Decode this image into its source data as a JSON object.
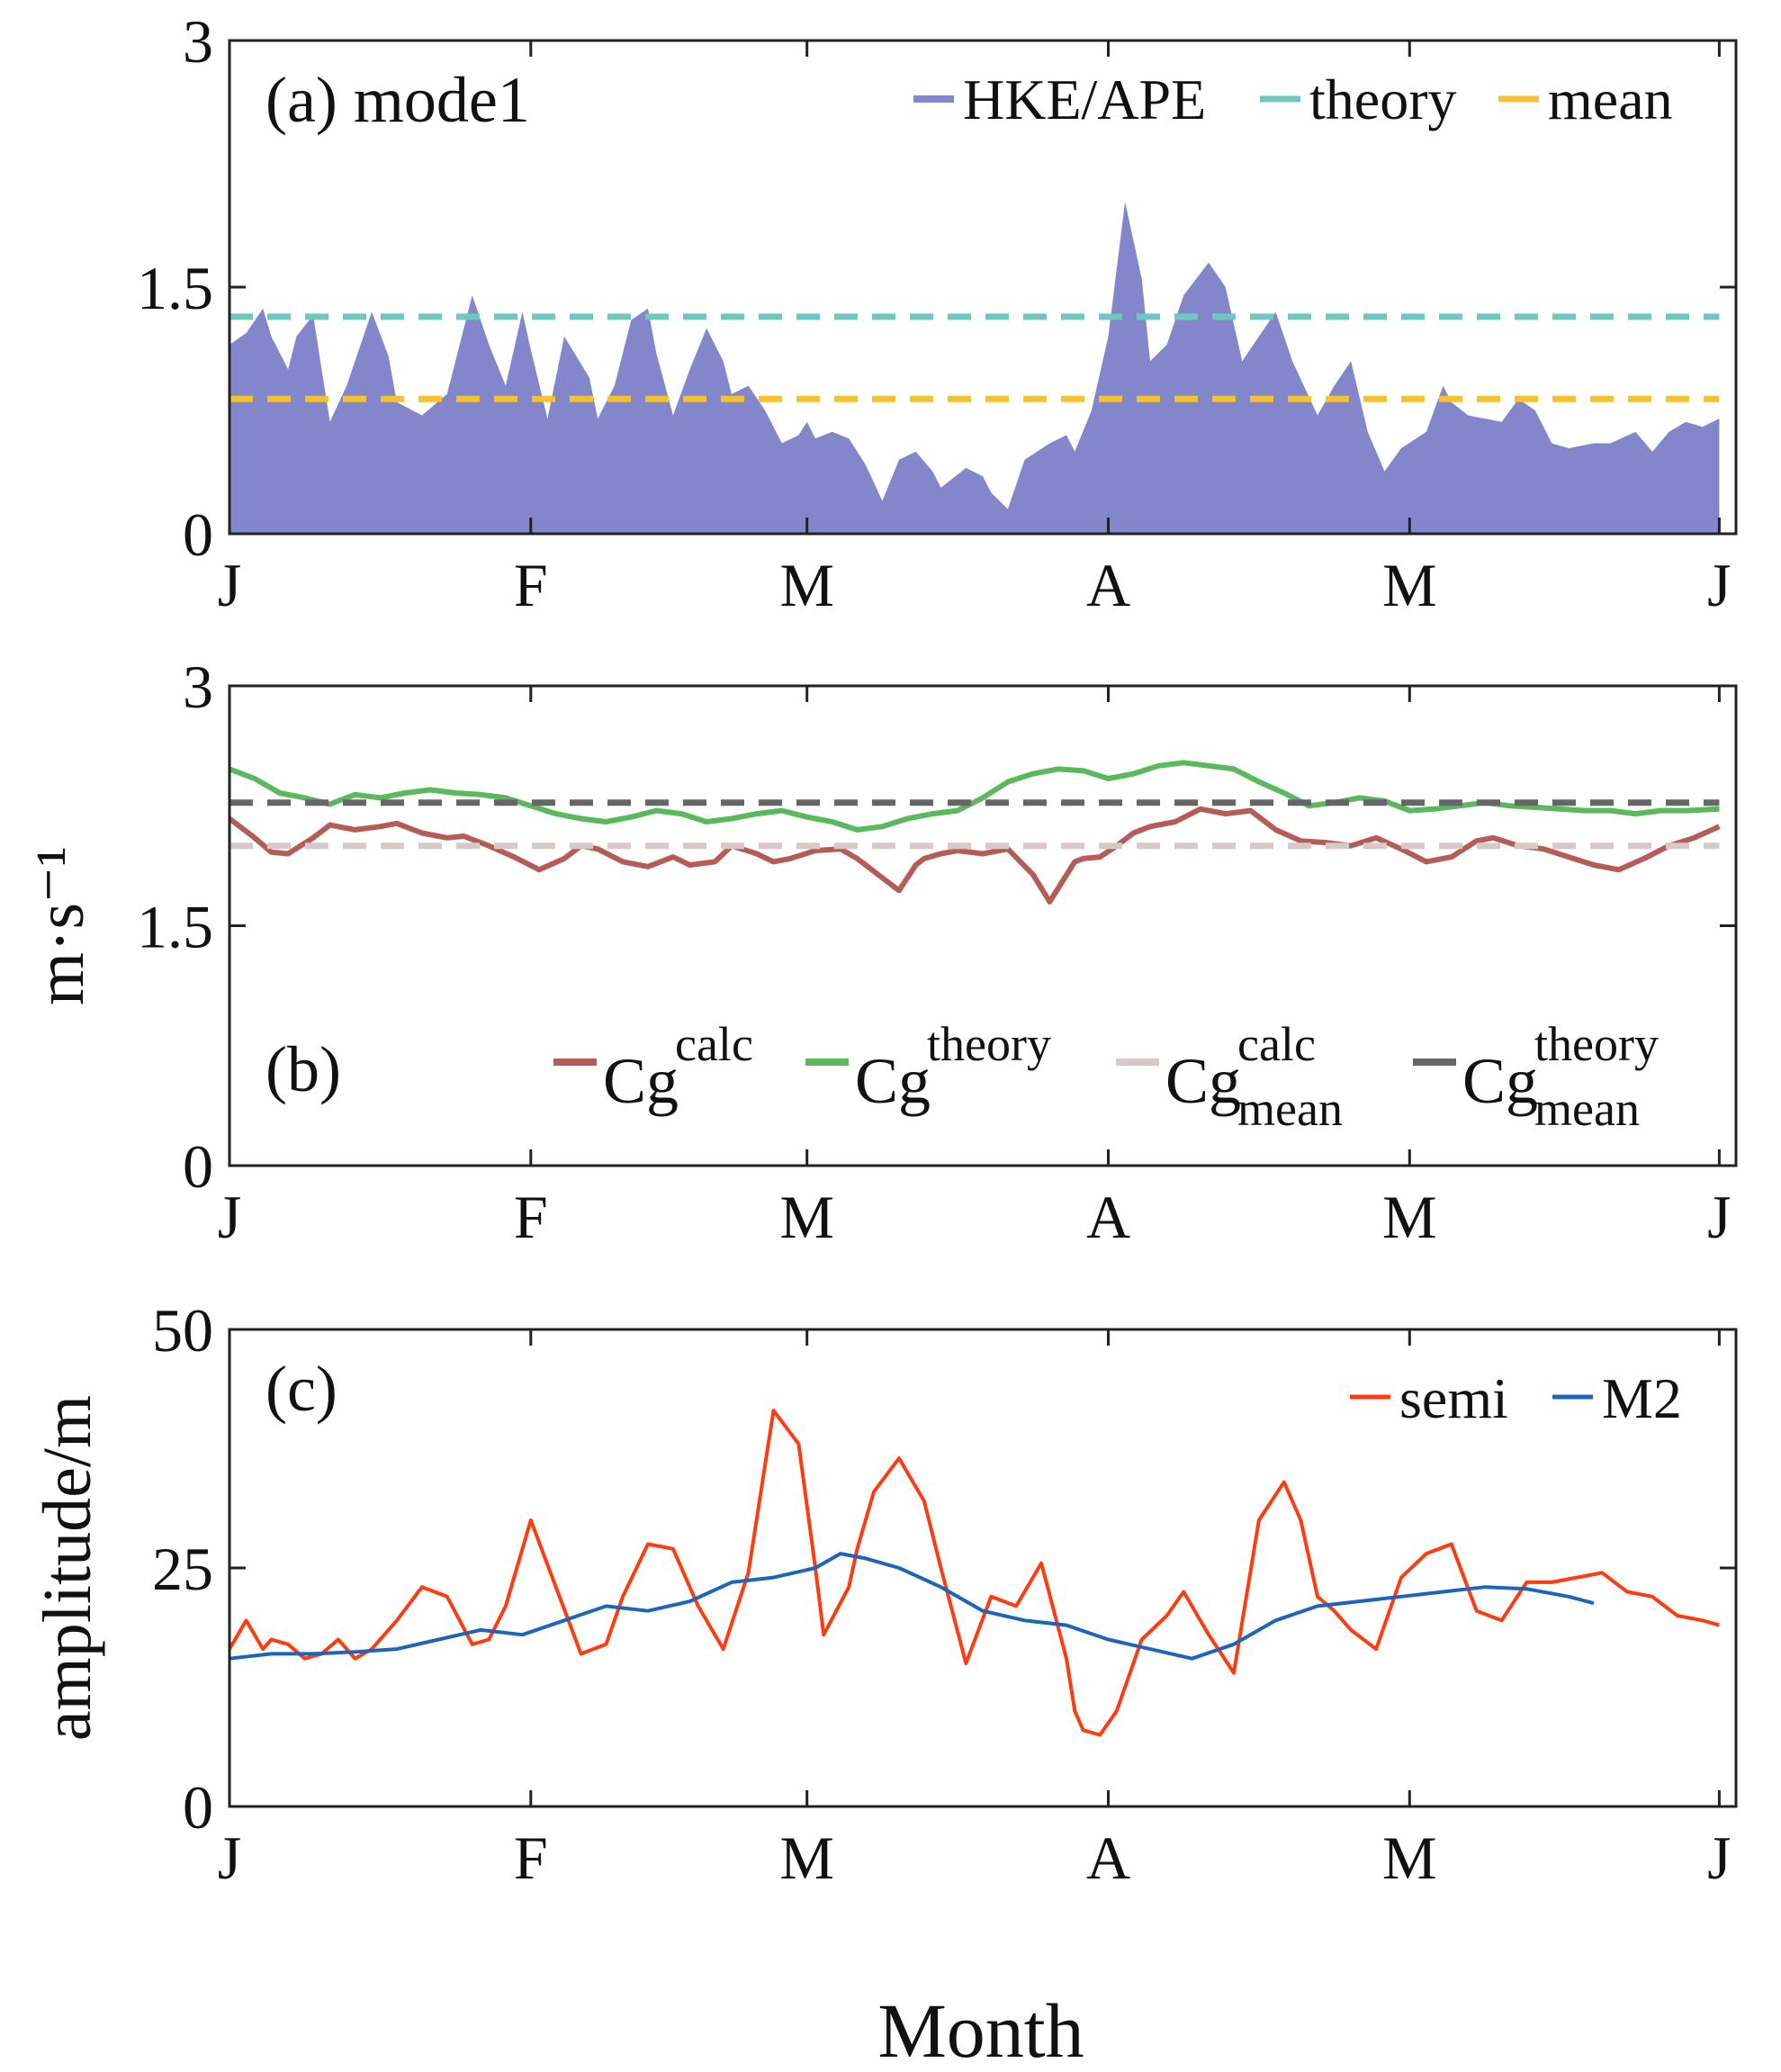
{
  "figure": {
    "xlabel": "Month",
    "month_ticks": [
      "J",
      "F",
      "M",
      "A",
      "M",
      "J"
    ]
  },
  "colors": {
    "hke_fill": "#8486cc",
    "theory_a": "#6fc7bf",
    "mean_a": "#f2c230",
    "cg_calc": "#b55c58",
    "cg_theory": "#5bb85c",
    "cg_calc_mean": "#d8c8c8",
    "cg_theory_mean": "#666666",
    "semi": "#ff3b10",
    "m2": "#1e64b8",
    "axis": "#222222"
  },
  "chart_data": [
    {
      "id": "a",
      "type": "area",
      "panel_label": "(a) mode1",
      "ylabel": "",
      "ylim": [
        0,
        3
      ],
      "yticks": [
        "0",
        "1.5",
        "3"
      ],
      "x_unit": "day of record (0-180)",
      "xlim": [
        0,
        180
      ],
      "xtick_positions": [
        0,
        36,
        69,
        105,
        141,
        178
      ],
      "legend": {
        "position": "top-right",
        "entries": [
          "HKE/APE",
          "theory",
          "mean"
        ]
      },
      "series": [
        {
          "name": "HKE/APE",
          "style": "area",
          "x": [
            0,
            2,
            4,
            5,
            7,
            8,
            10,
            12,
            14,
            17,
            19,
            20,
            23,
            26,
            28,
            29,
            31,
            33,
            35,
            36,
            38,
            40,
            43,
            44,
            46,
            48,
            50,
            51,
            53,
            55,
            57,
            59,
            60,
            62,
            64,
            66,
            68,
            69,
            70,
            72,
            74,
            76,
            78,
            80,
            82,
            84,
            85,
            88,
            90,
            91,
            93,
            95,
            98,
            100,
            101,
            103,
            105,
            107,
            109,
            110,
            112,
            114,
            117,
            119,
            121,
            123,
            125,
            127,
            130,
            132,
            134,
            136,
            138,
            140,
            143,
            145,
            146,
            148,
            150,
            152,
            154,
            156,
            158,
            160,
            163,
            165,
            168,
            170,
            172,
            174,
            176,
            178
          ],
          "y": [
            1.15,
            1.22,
            1.37,
            1.2,
            1.0,
            1.2,
            1.33,
            0.68,
            0.9,
            1.35,
            1.08,
            0.8,
            0.72,
            0.85,
            1.25,
            1.45,
            1.15,
            0.9,
            1.35,
            1.12,
            0.7,
            1.2,
            0.95,
            0.7,
            0.9,
            1.3,
            1.37,
            1.1,
            0.72,
            1.0,
            1.25,
            1.05,
            0.85,
            0.9,
            0.75,
            0.55,
            0.6,
            0.68,
            0.58,
            0.62,
            0.58,
            0.42,
            0.2,
            0.45,
            0.5,
            0.38,
            0.28,
            0.4,
            0.35,
            0.25,
            0.15,
            0.45,
            0.55,
            0.6,
            0.5,
            0.75,
            1.2,
            2.02,
            1.55,
            1.05,
            1.15,
            1.45,
            1.65,
            1.5,
            1.05,
            1.2,
            1.35,
            1.05,
            0.72,
            0.9,
            1.05,
            0.62,
            0.38,
            0.52,
            0.62,
            0.9,
            0.8,
            0.72,
            0.7,
            0.68,
            0.82,
            0.75,
            0.55,
            0.52,
            0.55,
            0.55,
            0.62,
            0.5,
            0.62,
            0.68,
            0.65,
            0.7
          ]
        },
        {
          "name": "theory",
          "style": "dashed",
          "x": [
            0,
            178
          ],
          "y": [
            1.32,
            1.32
          ]
        },
        {
          "name": "mean",
          "style": "dashed",
          "x": [
            0,
            178
          ],
          "y": [
            0.82,
            0.82
          ]
        }
      ]
    },
    {
      "id": "b",
      "type": "line",
      "panel_label": "(b)",
      "ylabel": "m·s⁻¹",
      "ylim": [
        0,
        3
      ],
      "yticks": [
        "0",
        "1.5",
        "3"
      ],
      "xlim": [
        0,
        180
      ],
      "xtick_positions": [
        0,
        36,
        69,
        105,
        141,
        178
      ],
      "legend": {
        "position": "bottom-right",
        "entries": [
          {
            "base": "Cg",
            "sup": "calc",
            "sub": ""
          },
          {
            "base": "Cg",
            "sup": "theory",
            "sub": ""
          },
          {
            "base": "Cg",
            "sup": "calc",
            "sub": "mean"
          },
          {
            "base": "Cg",
            "sup": "theory",
            "sub": "mean"
          }
        ]
      },
      "series": [
        {
          "name": "Cg calc",
          "x": [
            0,
            3,
            5,
            7,
            10,
            12,
            15,
            18,
            20,
            23,
            26,
            28,
            31,
            34,
            37,
            40,
            42,
            44,
            47,
            50,
            53,
            55,
            58,
            60,
            63,
            65,
            67,
            70,
            73,
            75,
            78,
            80,
            82,
            83,
            85,
            87,
            90,
            93,
            96,
            98,
            101,
            102,
            104,
            106,
            108,
            110,
            113,
            116,
            119,
            122,
            125,
            128,
            131,
            134,
            137,
            140,
            143,
            146,
            149,
            151,
            154,
            157,
            160,
            163,
            166,
            169,
            172,
            175,
            178
          ],
          "y": [
            2.17,
            2.05,
            1.96,
            1.95,
            2.05,
            2.13,
            2.1,
            2.12,
            2.14,
            2.08,
            2.05,
            2.06,
            2.0,
            1.93,
            1.85,
            1.92,
            2.0,
            1.98,
            1.9,
            1.87,
            1.93,
            1.88,
            1.9,
            2.0,
            1.95,
            1.9,
            1.92,
            1.97,
            1.98,
            1.92,
            1.8,
            1.72,
            1.88,
            1.92,
            1.95,
            1.97,
            1.95,
            1.98,
            1.82,
            1.65,
            1.9,
            1.92,
            1.93,
            2.0,
            2.08,
            2.12,
            2.15,
            2.23,
            2.2,
            2.22,
            2.1,
            2.03,
            2.02,
            2.0,
            2.05,
            1.98,
            1.9,
            1.93,
            2.03,
            2.05,
            2.0,
            1.98,
            1.93,
            1.88,
            1.85,
            1.92,
            2.0,
            2.05,
            2.12
          ]
        },
        {
          "name": "Cg theory",
          "x": [
            0,
            3,
            6,
            9,
            12,
            15,
            18,
            21,
            24,
            27,
            30,
            33,
            36,
            39,
            42,
            45,
            48,
            51,
            54,
            57,
            60,
            63,
            66,
            69,
            72,
            75,
            78,
            81,
            84,
            87,
            90,
            93,
            96,
            99,
            102,
            105,
            108,
            111,
            114,
            117,
            120,
            123,
            126,
            129,
            132,
            135,
            138,
            141,
            144,
            147,
            150,
            153,
            156,
            159,
            162,
            165,
            168,
            171,
            174,
            178
          ],
          "y": [
            2.48,
            2.42,
            2.33,
            2.3,
            2.26,
            2.32,
            2.3,
            2.33,
            2.35,
            2.33,
            2.32,
            2.3,
            2.25,
            2.2,
            2.17,
            2.15,
            2.18,
            2.22,
            2.2,
            2.15,
            2.17,
            2.2,
            2.22,
            2.18,
            2.15,
            2.1,
            2.12,
            2.17,
            2.2,
            2.22,
            2.3,
            2.4,
            2.45,
            2.48,
            2.47,
            2.42,
            2.45,
            2.5,
            2.52,
            2.5,
            2.48,
            2.4,
            2.33,
            2.25,
            2.27,
            2.3,
            2.28,
            2.22,
            2.23,
            2.25,
            2.27,
            2.25,
            2.24,
            2.23,
            2.22,
            2.22,
            2.2,
            2.22,
            2.22,
            2.23
          ]
        },
        {
          "name": "Cg calc mean",
          "style": "dashed",
          "x": [
            0,
            178
          ],
          "y": [
            2.0,
            2.0
          ]
        },
        {
          "name": "Cg theory mean",
          "style": "dashed",
          "x": [
            0,
            178
          ],
          "y": [
            2.27,
            2.27
          ]
        }
      ]
    },
    {
      "id": "c",
      "type": "line",
      "panel_label": "(c)",
      "ylabel": "amplitude/m",
      "ylim": [
        0,
        50
      ],
      "yticks": [
        "0",
        "25",
        "50"
      ],
      "xlim": [
        0,
        180
      ],
      "xtick_positions": [
        0,
        36,
        69,
        105,
        141,
        178
      ],
      "legend": {
        "position": "top-right",
        "entries": [
          "semi",
          "M2"
        ]
      },
      "series": [
        {
          "name": "semi",
          "x": [
            0,
            2,
            4,
            5,
            7,
            9,
            11,
            13,
            15,
            17,
            20,
            23,
            26,
            29,
            31,
            33,
            36,
            39,
            42,
            45,
            47,
            50,
            53,
            56,
            59,
            62,
            65,
            68,
            70,
            71,
            74,
            75,
            77,
            80,
            83,
            85,
            88,
            91,
            94,
            97,
            100,
            101,
            102,
            104,
            106,
            109,
            112,
            114,
            117,
            120,
            123,
            126,
            128,
            130,
            132,
            134,
            137,
            140,
            143,
            146,
            149,
            152,
            155,
            158,
            161,
            164,
            167,
            170,
            173,
            176,
            178
          ],
          "y": [
            16.5,
            19.5,
            16.5,
            17.5,
            17.0,
            15.5,
            16.0,
            17.5,
            15.5,
            16.5,
            19.5,
            23.0,
            22.0,
            17.0,
            17.5,
            21.0,
            30.0,
            23.0,
            16.0,
            17.0,
            22.0,
            27.5,
            27.0,
            21.0,
            16.5,
            24.5,
            41.5,
            38.0,
            25.0,
            18.0,
            23.0,
            27.0,
            33.0,
            36.5,
            32.0,
            25.0,
            15.0,
            22.0,
            21.0,
            25.5,
            15.5,
            10.0,
            8.0,
            7.5,
            10.0,
            17.5,
            20.0,
            22.5,
            18.0,
            14.0,
            30.0,
            34.0,
            30.0,
            22.0,
            20.5,
            18.5,
            16.5,
            24.0,
            26.5,
            27.5,
            20.5,
            19.5,
            23.5,
            23.5,
            24.0,
            24.5,
            22.5,
            22.0,
            20.0,
            19.5,
            19.0
          ]
        },
        {
          "name": "M2",
          "x": [
            0,
            5,
            10,
            15,
            20,
            25,
            30,
            35,
            40,
            45,
            50,
            55,
            60,
            65,
            70,
            73,
            76,
            80,
            85,
            90,
            95,
            100,
            105,
            110,
            115,
            120,
            125,
            130,
            135,
            140,
            145,
            150,
            155,
            160,
            163
          ],
          "y": [
            15.5,
            16.0,
            16.0,
            16.2,
            16.5,
            17.5,
            18.5,
            18.0,
            19.5,
            21.0,
            20.5,
            21.5,
            23.5,
            24.0,
            25.0,
            26.5,
            26.0,
            25.0,
            23.0,
            20.5,
            19.5,
            19.0,
            17.5,
            16.5,
            15.5,
            17.0,
            19.5,
            21.0,
            21.5,
            22.0,
            22.5,
            23.0,
            22.8,
            22.0,
            21.3
          ]
        }
      ]
    }
  ]
}
